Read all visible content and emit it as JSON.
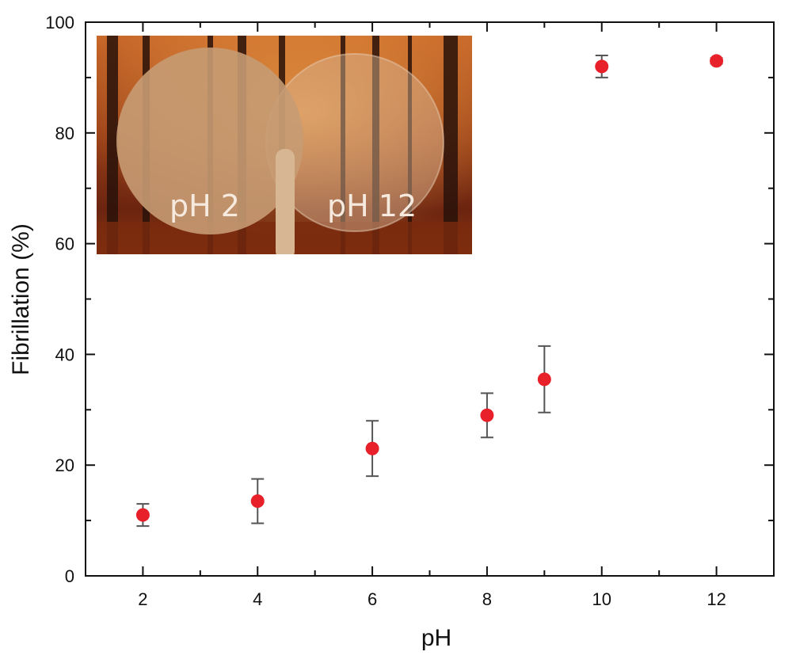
{
  "chart_data": {
    "type": "scatter",
    "title": "",
    "xlabel": "pH",
    "ylabel": "Fibrillation (%)",
    "xlim": [
      1,
      13
    ],
    "ylim": [
      0,
      100
    ],
    "x_ticks": [
      2,
      4,
      6,
      8,
      10,
      12
    ],
    "y_ticks": [
      0,
      20,
      40,
      60,
      80,
      100
    ],
    "grid": false,
    "marker_color": "#e8202a",
    "errorbar_color": "#555555",
    "series": [
      {
        "name": "Fibrillation",
        "points": [
          {
            "x": 2,
            "y": 11,
            "err_low": 9,
            "err_high": 13
          },
          {
            "x": 4,
            "y": 13.5,
            "err_low": 9.5,
            "err_high": 17.5
          },
          {
            "x": 6,
            "y": 23,
            "err_low": 18,
            "err_high": 28
          },
          {
            "x": 8,
            "y": 29,
            "err_low": 25,
            "err_high": 33
          },
          {
            "x": 9,
            "y": 35.5,
            "err_low": 29.5,
            "err_high": 41.5
          },
          {
            "x": 10,
            "y": 92,
            "err_low": 90,
            "err_high": 94
          },
          {
            "x": 12,
            "y": 93,
            "err_low": 92.5,
            "err_high": 93.5
          }
        ]
      }
    ],
    "inset": {
      "description_labels": [
        "pH 2",
        "pH 12"
      ]
    }
  }
}
